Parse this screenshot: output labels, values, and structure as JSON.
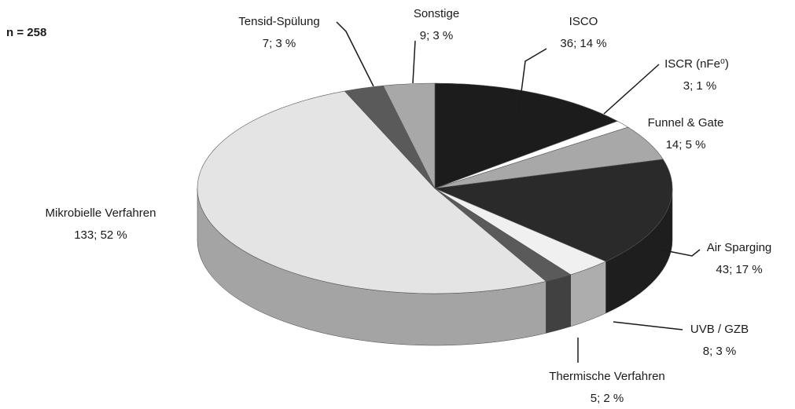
{
  "chart_data": {
    "type": "pie",
    "annotation": "n = 258",
    "categories": [
      "ISCO",
      "ISCR (nFe⁰)",
      "Funnel & Gate",
      "Air Sparging",
      "UVB / GZB",
      "Thermische Verfahren",
      "Mikrobielle Verfahren",
      "Tensid-Spülung",
      "Sonstige"
    ],
    "values": [
      36,
      3,
      14,
      43,
      8,
      5,
      133,
      7,
      9
    ],
    "value_labels": [
      "36; 14 %",
      "3; 1 %",
      "14; 5 %",
      "43; 17 %",
      "8; 3 %",
      "5; 2 %",
      "133; 52 %",
      "7; 3 %",
      "9; 3 %"
    ],
    "colors": [
      "#1c1c1c",
      "#ffffff",
      "#a8a8a8",
      "#2a2a2a",
      "#f0f0f0",
      "#5a5a5a",
      "#e4e4e4",
      "#5a5a5a",
      "#a8a8a8"
    ]
  }
}
